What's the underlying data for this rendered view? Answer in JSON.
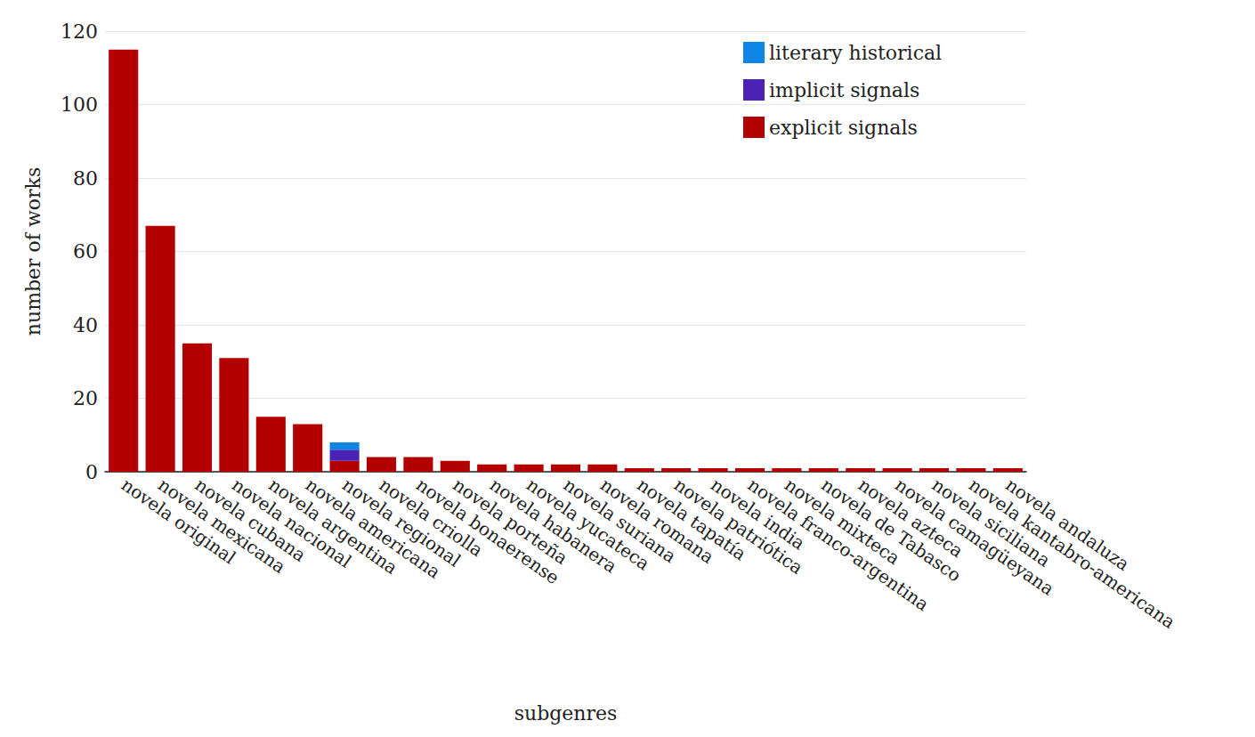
{
  "chart_data": {
    "type": "bar",
    "stacked": true,
    "grid": true,
    "legend": "top-right",
    "x_label": "subgenres",
    "y_label": "number of works",
    "categories": [
      "novela original",
      "novela mexicana",
      "novela cubana",
      "novela nacional",
      "novela argentina",
      "novela americana",
      "novela regional",
      "novela criolla",
      "novela bonaerense",
      "novela porteña",
      "novela habanera",
      "novela yucateca",
      "novela suriana",
      "novela romana",
      "novela tapatía",
      "novela patriótica",
      "novela india",
      "novela franco-argentina",
      "novela mixteca",
      "novela de Tabasco",
      "novela azteca",
      "novela camagüeyana",
      "novela siciliana",
      "novela kantabro-americana",
      "novela andaluza"
    ],
    "series": [
      {
        "name": "explicit signals",
        "color": "#b30000",
        "values": [
          115,
          67,
          35,
          31,
          15,
          13,
          3,
          4,
          4,
          3,
          2,
          2,
          2,
          2,
          1,
          1,
          1,
          1,
          1,
          1,
          1,
          1,
          1,
          1,
          1
        ]
      },
      {
        "name": "implicit signals",
        "color": "#4a22b5",
        "values": [
          0,
          0,
          0,
          0,
          0,
          0,
          3,
          0,
          0,
          0,
          0,
          0,
          0,
          0,
          0,
          0,
          0,
          0,
          0,
          0,
          0,
          0,
          0,
          0,
          0
        ]
      },
      {
        "name": "literary historical",
        "color": "#0f86e6",
        "values": [
          0,
          0,
          0,
          0,
          0,
          0,
          2,
          0,
          0,
          0,
          0,
          0,
          0,
          0,
          0,
          0,
          0,
          0,
          0,
          0,
          0,
          0,
          0,
          0,
          0
        ]
      }
    ],
    "ylim": [
      0,
      120
    ],
    "yticks": [
      0,
      20,
      40,
      60,
      80,
      100,
      120
    ]
  }
}
